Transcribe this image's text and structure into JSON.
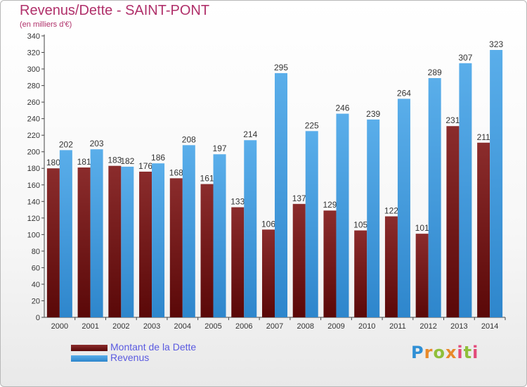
{
  "header": {
    "title": "Revenus/Dette - SAINT-PONT",
    "subtitle": "(en milliers d'€)"
  },
  "brand": {
    "logo_text": "Proxiti",
    "logo_colors": [
      "#2f8fd5",
      "#e8892a",
      "#8fbf3a",
      "#e24b7a"
    ]
  },
  "colors": {
    "dette": "#7a1f1f",
    "revenus": "#3e9fe4"
  },
  "chart_data": {
    "type": "bar",
    "title": "Revenus/Dette - SAINT-PONT",
    "subtitle": "(en milliers d'€)",
    "categories": [
      "2000",
      "2001",
      "2002",
      "2003",
      "2004",
      "2005",
      "2006",
      "2007",
      "2008",
      "2009",
      "2010",
      "2011",
      "2012",
      "2013",
      "2014"
    ],
    "series": [
      {
        "name": "Montant de la Dette",
        "values": [
          180,
          181,
          183,
          176,
          168,
          161,
          133,
          106,
          137,
          129,
          105,
          122,
          101,
          231,
          211
        ]
      },
      {
        "name": "Revenus",
        "values": [
          202,
          203,
          182,
          186,
          208,
          197,
          214,
          295,
          225,
          246,
          239,
          264,
          289,
          307,
          323
        ]
      }
    ],
    "yticks": [
      0,
      20,
      40,
      60,
      80,
      100,
      120,
      140,
      160,
      180,
      200,
      220,
      240,
      260,
      280,
      300,
      320,
      340
    ],
    "ylim": [
      0,
      340
    ],
    "grid": false,
    "legend_position": "bottom-left"
  }
}
